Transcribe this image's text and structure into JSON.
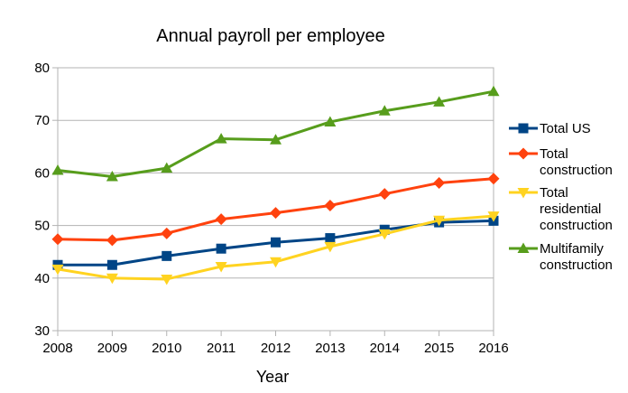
{
  "chart_data": {
    "type": "line",
    "title": "Annual payroll per employee",
    "xlabel": "Year",
    "ylabel": "",
    "ylim": [
      30,
      80
    ],
    "yticks": [
      "30",
      "40",
      "50",
      "60",
      "70",
      "80"
    ],
    "x": [
      "2008",
      "2009",
      "2010",
      "2011",
      "2012",
      "2013",
      "2014",
      "2015",
      "2016"
    ],
    "grid": "horizontal",
    "legend_position": "right",
    "series": [
      {
        "name": "Total US",
        "color": "#004586",
        "marker": "square",
        "values": [
          42.5,
          42.5,
          44.2,
          45.6,
          46.8,
          47.6,
          49.2,
          50.6,
          50.9
        ]
      },
      {
        "name": "Total construction",
        "color": "#ff420e",
        "marker": "diamond",
        "values": [
          47.4,
          47.2,
          48.5,
          51.2,
          52.4,
          53.8,
          56.0,
          58.1,
          58.9
        ]
      },
      {
        "name": "Total residential construction",
        "color": "#ffd320",
        "marker": "triangle-down",
        "values": [
          41.7,
          40.0,
          39.8,
          42.2,
          43.1,
          46.0,
          48.4,
          51.0,
          51.8
        ]
      },
      {
        "name": "Multifamily construction",
        "color": "#579d1c",
        "marker": "triangle-up",
        "values": [
          60.5,
          59.3,
          60.9,
          66.5,
          66.3,
          69.7,
          71.8,
          73.5,
          75.5
        ]
      }
    ],
    "legend_lines": [
      [
        "Total US"
      ],
      [
        "Total",
        "construction"
      ],
      [
        "Total",
        "residential",
        "construction"
      ],
      [
        "Multifamily",
        "construction"
      ]
    ]
  }
}
